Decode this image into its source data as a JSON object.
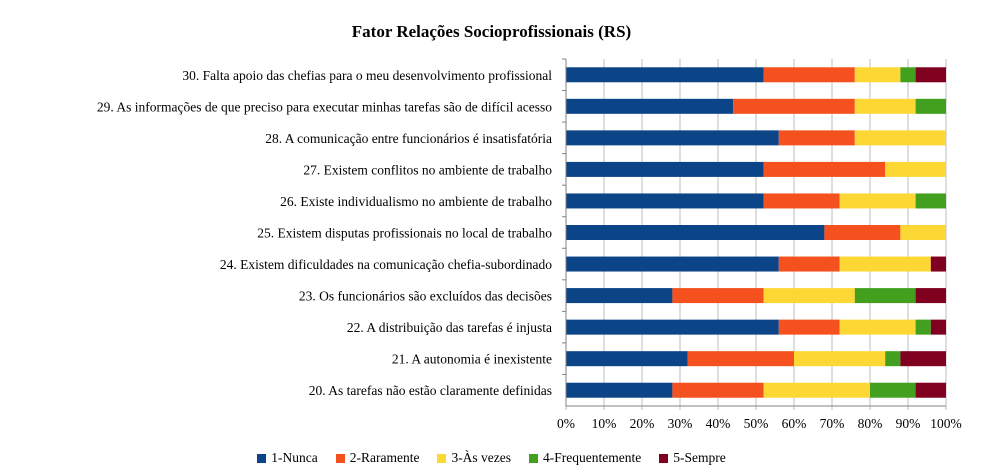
{
  "chart_data": {
    "type": "bar",
    "orientation": "horizontal",
    "stacked": "percent",
    "title": "Fator Relações Socioprofissionais (RS)",
    "xlabel": "",
    "ylabel": "",
    "xlim": [
      0,
      100
    ],
    "x_ticks": [
      "0%",
      "10%",
      "20%",
      "30%",
      "40%",
      "50%",
      "60%",
      "70%",
      "80%",
      "90%",
      "100%"
    ],
    "legend_position": "bottom",
    "categories": [
      "30. Falta apoio das chefias para o meu desenvolvimento profissional",
      "29. As informações de que preciso para executar minhas tarefas são de difícil acesso",
      "28. A comunicação entre funcionários é insatisfatória",
      "27. Existem conflitos no ambiente de trabalho",
      "26. Existe individualismo no ambiente de trabalho",
      "25. Existem disputas profissionais no local de trabalho",
      "24. Existem dificuldades na comunicação chefia-subordinado",
      "23. Os funcionários são excluídos das decisões",
      "22. A distribuição das tarefas é injusta",
      "21. A autonomia é inexistente",
      "20. As tarefas não estão claramente definidas"
    ],
    "series": [
      {
        "name": "1-Nunca",
        "color": "#0b4588",
        "values": [
          52,
          44,
          56,
          52,
          52,
          68,
          56,
          28,
          56,
          32,
          28
        ]
      },
      {
        "name": "2-Raramente",
        "color": "#f4511e",
        "values": [
          24,
          32,
          20,
          32,
          20,
          20,
          16,
          24,
          16,
          28,
          24
        ]
      },
      {
        "name": "3-Às vezes",
        "color": "#fdd835",
        "values": [
          12,
          16,
          24,
          16,
          20,
          12,
          24,
          24,
          20,
          24,
          28
        ]
      },
      {
        "name": "4-Frequentemente",
        "color": "#43a01f",
        "values": [
          4,
          8,
          0,
          0,
          8,
          0,
          0,
          16,
          4,
          4,
          12
        ]
      },
      {
        "name": "5-Sempre",
        "color": "#800020",
        "values": [
          8,
          0,
          0,
          0,
          0,
          0,
          4,
          8,
          4,
          12,
          8
        ]
      }
    ]
  }
}
